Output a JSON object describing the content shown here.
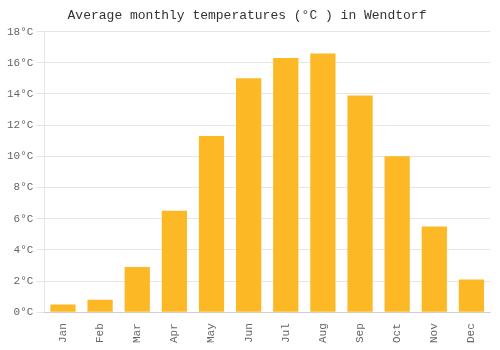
{
  "chart_data": {
    "type": "bar",
    "title": "Average monthly temperatures (°C ) in Wendtorf",
    "categories": [
      "Jan",
      "Feb",
      "Mar",
      "Apr",
      "May",
      "Jun",
      "Jul",
      "Aug",
      "Sep",
      "Oct",
      "Nov",
      "Dec"
    ],
    "values": [
      0.5,
      0.8,
      2.9,
      6.5,
      11.3,
      15.0,
      16.3,
      16.6,
      13.9,
      10.0,
      5.5,
      2.1
    ],
    "color": "#FDB825",
    "ylim": [
      0,
      18
    ],
    "yticks": [
      {
        "value": 0,
        "label": "0°C"
      },
      {
        "value": 2,
        "label": "2°C"
      },
      {
        "value": 4,
        "label": "4°C"
      },
      {
        "value": 6,
        "label": "6°C"
      },
      {
        "value": 8,
        "label": "8°C"
      },
      {
        "value": 10,
        "label": "10°C"
      },
      {
        "value": 12,
        "label": "12°C"
      },
      {
        "value": 14,
        "label": "14°C"
      },
      {
        "value": 16,
        "label": "16°C"
      },
      {
        "value": 18,
        "label": "18°C"
      }
    ],
    "grid": true
  }
}
